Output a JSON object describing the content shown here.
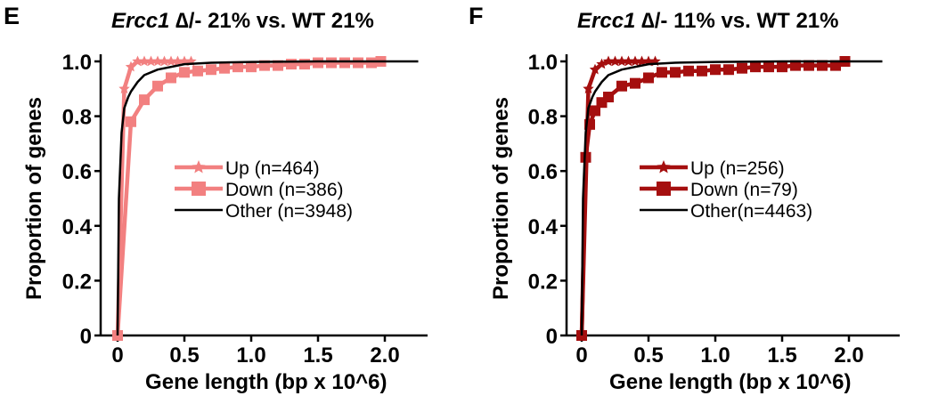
{
  "chart_data": [
    {
      "panel": "E",
      "type": "line",
      "title_italic": "Ercc1",
      "title_rest": " ∆/- 21% vs. WT 21%",
      "xlabel": "Gene length (bp x 10^6)",
      "ylabel": "Proportion of genes",
      "xlim": [
        0,
        2.3
      ],
      "ylim": [
        0,
        1.0
      ],
      "xticks": [
        0,
        0.5,
        1.0,
        1.5,
        2.0
      ],
      "xtick_labels": [
        "0",
        "0.5",
        "1.0",
        "1.5",
        "2.0"
      ],
      "yticks": [
        0,
        0.2,
        0.4,
        0.6,
        0.8,
        1.0
      ],
      "ytick_labels": [
        "0",
        "0.2",
        "0.4",
        "0.6",
        "0.8",
        "1.0"
      ],
      "legend_position": "center-right",
      "series": [
        {
          "name": "Up (n=464)",
          "color": "#f28080",
          "marker": "star",
          "x": [
            0,
            0.05,
            0.1,
            0.15,
            0.2,
            0.25,
            0.3,
            0.35,
            0.4,
            0.45,
            0.5,
            0.55
          ],
          "y": [
            0,
            0.9,
            0.98,
            1.0,
            1.0,
            1.0,
            1.0,
            1.0,
            1.0,
            1.0,
            1.0,
            1.0
          ]
        },
        {
          "name": "Down (n=386)",
          "color": "#f28080",
          "marker": "square",
          "x": [
            0,
            0.1,
            0.2,
            0.3,
            0.4,
            0.5,
            0.6,
            0.7,
            0.8,
            0.9,
            1.0,
            1.1,
            1.2,
            1.3,
            1.4,
            1.5,
            1.6,
            1.7,
            1.8,
            1.9,
            1.97
          ],
          "y": [
            0,
            0.78,
            0.86,
            0.91,
            0.94,
            0.96,
            0.965,
            0.97,
            0.975,
            0.98,
            0.98,
            0.985,
            0.985,
            0.99,
            0.99,
            0.995,
            0.995,
            0.995,
            0.995,
            0.995,
            1.0
          ]
        },
        {
          "name": "Other (n=3948)",
          "color": "#000000",
          "marker": "none",
          "x": [
            0,
            0.01,
            0.03,
            0.05,
            0.08,
            0.1,
            0.15,
            0.2,
            0.3,
            0.4,
            0.5,
            0.7,
            1.0,
            1.5,
            2.0,
            2.25
          ],
          "y": [
            0,
            0.5,
            0.74,
            0.83,
            0.87,
            0.89,
            0.925,
            0.95,
            0.97,
            0.98,
            0.99,
            0.995,
            0.998,
            1.0,
            1.0,
            1.0
          ]
        }
      ]
    },
    {
      "panel": "F",
      "type": "line",
      "title_italic": "Ercc1",
      "title_rest": " ∆/- 11% vs. WT 21%",
      "xlabel": "Gene length (bp x 10^6)",
      "ylabel": "Proportion of genes",
      "xlim": [
        0,
        2.3
      ],
      "ylim": [
        0,
        1.0
      ],
      "xticks": [
        0,
        0.5,
        1.0,
        1.5,
        2.0
      ],
      "xtick_labels": [
        "0",
        "0.5",
        "1.0",
        "1.5",
        "2.0"
      ],
      "yticks": [
        0,
        0.2,
        0.4,
        0.6,
        0.8,
        1.0
      ],
      "ytick_labels": [
        "0",
        "0.2",
        "0.4",
        "0.6",
        "0.8",
        "1.0"
      ],
      "legend_position": "center-right",
      "series": [
        {
          "name": "Up (n=256)",
          "color": "#a50f0f",
          "marker": "star",
          "x": [
            0,
            0.05,
            0.1,
            0.15,
            0.2,
            0.25,
            0.3,
            0.35,
            0.4,
            0.45,
            0.5,
            0.55
          ],
          "y": [
            0,
            0.9,
            0.97,
            0.99,
            1.0,
            1.0,
            1.0,
            1.0,
            1.0,
            1.0,
            1.0,
            1.0
          ]
        },
        {
          "name": "Down (n=79)",
          "color": "#a50f0f",
          "marker": "square",
          "x": [
            0,
            0.03,
            0.06,
            0.1,
            0.15,
            0.2,
            0.3,
            0.4,
            0.5,
            0.6,
            0.7,
            0.8,
            0.9,
            1.0,
            1.1,
            1.2,
            1.3,
            1.4,
            1.5,
            1.6,
            1.7,
            1.8,
            1.9,
            1.97
          ],
          "y": [
            0,
            0.65,
            0.77,
            0.82,
            0.85,
            0.87,
            0.91,
            0.92,
            0.94,
            0.96,
            0.96,
            0.965,
            0.965,
            0.97,
            0.97,
            0.975,
            0.98,
            0.98,
            0.98,
            0.985,
            0.985,
            0.985,
            0.985,
            1.0
          ]
        },
        {
          "name": "Other(n=4463)",
          "color": "#000000",
          "marker": "none",
          "x": [
            0,
            0.01,
            0.03,
            0.05,
            0.08,
            0.1,
            0.15,
            0.2,
            0.3,
            0.4,
            0.5,
            0.7,
            1.0,
            1.5,
            2.0,
            2.25
          ],
          "y": [
            0,
            0.5,
            0.74,
            0.83,
            0.87,
            0.89,
            0.925,
            0.95,
            0.97,
            0.98,
            0.99,
            0.995,
            0.998,
            1.0,
            1.0,
            1.0
          ]
        }
      ]
    }
  ]
}
